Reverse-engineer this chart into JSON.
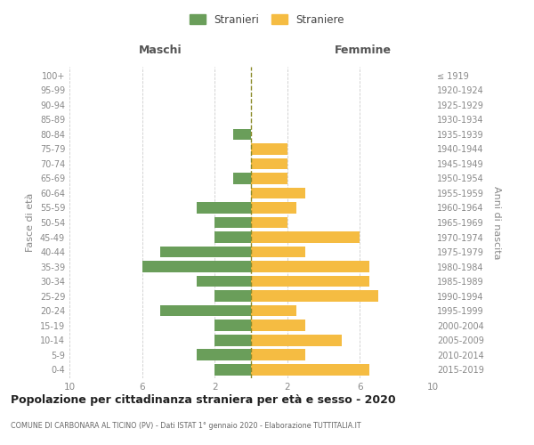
{
  "age_groups": [
    "0-4",
    "5-9",
    "10-14",
    "15-19",
    "20-24",
    "25-29",
    "30-34",
    "35-39",
    "40-44",
    "45-49",
    "50-54",
    "55-59",
    "60-64",
    "65-69",
    "70-74",
    "75-79",
    "80-84",
    "85-89",
    "90-94",
    "95-99",
    "100+"
  ],
  "birth_years": [
    "2015-2019",
    "2010-2014",
    "2005-2009",
    "2000-2004",
    "1995-1999",
    "1990-1994",
    "1985-1989",
    "1980-1984",
    "1975-1979",
    "1970-1974",
    "1965-1969",
    "1960-1964",
    "1955-1959",
    "1950-1954",
    "1945-1949",
    "1940-1944",
    "1935-1939",
    "1930-1934",
    "1925-1929",
    "1920-1924",
    "≤ 1919"
  ],
  "maschi": [
    2,
    3,
    2,
    2,
    5,
    2,
    3,
    6,
    5,
    2,
    2,
    3,
    0,
    1,
    0,
    0,
    1,
    0,
    0,
    0,
    0
  ],
  "femmine": [
    6.5,
    3,
    5,
    3,
    2.5,
    7,
    6.5,
    6.5,
    3,
    6,
    2,
    2.5,
    3,
    2,
    2,
    2,
    0,
    0,
    0,
    0,
    0
  ],
  "maschi_color": "#6a9e5a",
  "femmine_color": "#f5bc42",
  "background_color": "#ffffff",
  "grid_color": "#cccccc",
  "title": "Popolazione per cittadinanza straniera per età e sesso - 2020",
  "subtitle": "COMUNE DI CARBONARA AL TICINO (PV) - Dati ISTAT 1° gennaio 2020 - Elaborazione TUTTITALIA.IT",
  "ylabel_left": "Fasce di età",
  "ylabel_right": "Anni di nascita",
  "header_left": "Maschi",
  "header_right": "Femmine",
  "legend_maschi": "Stranieri",
  "legend_femmine": "Straniere",
  "xlim": 10,
  "center_line_color": "#8b8b2a"
}
